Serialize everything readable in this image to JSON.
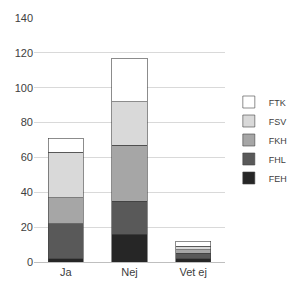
{
  "chart_data": {
    "type": "bar",
    "stacked": true,
    "grid": true,
    "legend": "right",
    "categories": [
      "Ja",
      "Nej",
      "Vet ej"
    ],
    "series": [
      {
        "name": "FEH",
        "color": "#262626",
        "values": [
          2,
          16,
          2
        ]
      },
      {
        "name": "FHL",
        "color": "#595959",
        "values": [
          20,
          19,
          3
        ]
      },
      {
        "name": "FKH",
        "color": "#a6a6a6",
        "values": [
          15,
          32,
          2
        ]
      },
      {
        "name": "FSV",
        "color": "#d9d9d9",
        "values": [
          26,
          25,
          2
        ]
      },
      {
        "name": "FTK",
        "color": "#ffffff",
        "values": [
          8,
          25,
          3
        ]
      }
    ],
    "ylim": [
      0,
      140
    ],
    "yticks": [
      0,
      20,
      40,
      60,
      80,
      100,
      120,
      140
    ]
  }
}
